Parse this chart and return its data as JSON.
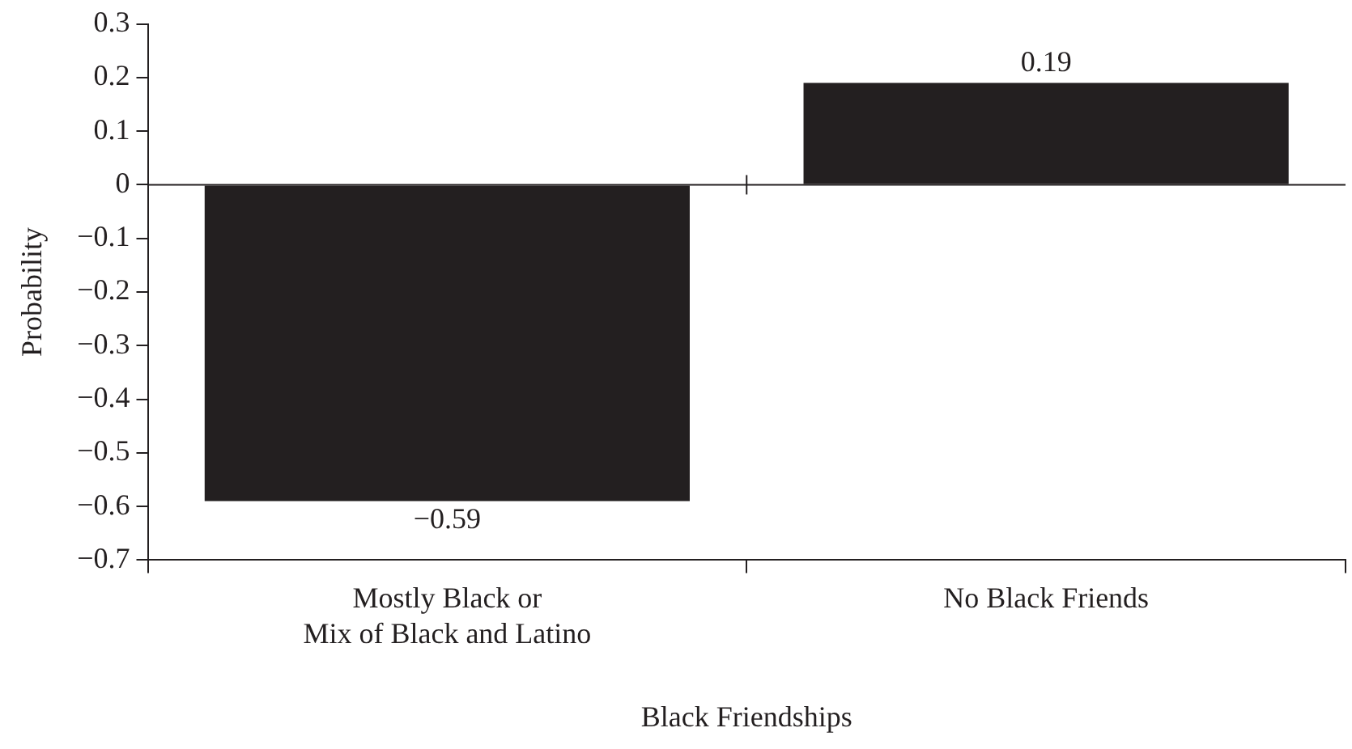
{
  "chart_data": {
    "type": "bar",
    "xlabel": "Black Friendships",
    "ylabel": "Probability",
    "categories": [
      "Mostly Black or\nMix of Black and Latino",
      "No Black Friends"
    ],
    "values": [
      -0.59,
      0.19
    ],
    "color": "#231f20",
    "value_labels": [
      "−0.59",
      "0.19"
    ],
    "ylim": [
      -0.7,
      0.3
    ],
    "yticks": [
      {
        "value": -0.7,
        "label": "−0.7"
      },
      {
        "value": -0.6,
        "label": "−0.6"
      },
      {
        "value": -0.5,
        "label": "−0.5"
      },
      {
        "value": -0.4,
        "label": "−0.4"
      },
      {
        "value": -0.3,
        "label": "−0.3"
      },
      {
        "value": -0.2,
        "label": "−0.2"
      },
      {
        "value": -0.1,
        "label": "−0.1"
      },
      0,
      0.1,
      0.2,
      0.3
    ],
    "ref_lines": [
      {
        "axis": "y",
        "value": 0
      }
    ],
    "grid": false,
    "legend": false
  }
}
